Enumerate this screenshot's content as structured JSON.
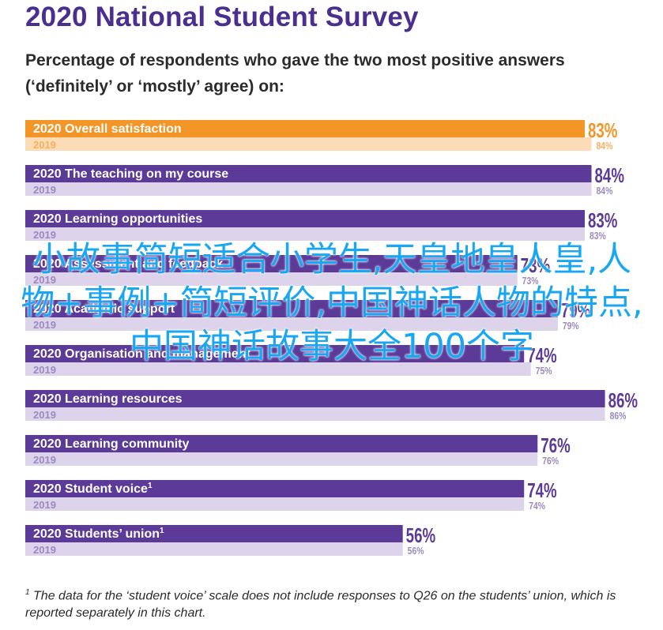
{
  "title": "2020 National Student Survey",
  "subtitle": "Percentage of respondents who gave the two most positive answers (‘definitely’ or ‘mostly’ agree) on:",
  "footnote": {
    "marker": "1",
    "text": "The data for the ‘student voice’ scale does not include responses to Q26 on the students’ union, which is reported separately in this chart."
  },
  "watermark": "小故事简短适合小学生,天皇地皇人皇,人物+事例+简短评价,中国神话人物的特点,中国神话故事大全100个字",
  "colors": {
    "title": "#4a2f90",
    "bar_2020_default": "#5b3a98",
    "bar_2020_highlight": "#f39627",
    "bar_2019_default": "#ddd3ea",
    "bar_2019_highlight": "#fbdcb6",
    "label_2019_default": "#9b8ac0",
    "label_2019_highlight": "#f6b15d",
    "watermark": "#19a7f3"
  },
  "chart_data": {
    "type": "bar",
    "orientation": "horizontal",
    "series": [
      {
        "name": "2020"
      },
      {
        "name": "2019"
      }
    ],
    "categories": [
      {
        "name": "Overall satisfaction",
        "v2020": 83,
        "v2019": 84,
        "highlight": true
      },
      {
        "name": "The teaching on my course",
        "v2020": 84,
        "v2019": 84
      },
      {
        "name": "Learning opportunities",
        "v2020": 83,
        "v2019": 83
      },
      {
        "name": "Assessment and feedback",
        "v2020": 73,
        "v2019": 73
      },
      {
        "name": "Academic support",
        "v2020": 79,
        "v2019": 79
      },
      {
        "name": "Organisation and management",
        "v2020": 74,
        "v2019": 75
      },
      {
        "name": "Learning resources",
        "v2020": 86,
        "v2019": 86
      },
      {
        "name": "Learning community",
        "v2020": 76,
        "v2019": 76
      },
      {
        "name": "Student voice",
        "v2020": 74,
        "v2019": 74,
        "footnote": "1"
      },
      {
        "name": "Students’ union",
        "v2020": 56,
        "v2019": 56,
        "footnote": "1"
      }
    ],
    "value_suffix": "%",
    "xlim": [
      0,
      100
    ]
  }
}
